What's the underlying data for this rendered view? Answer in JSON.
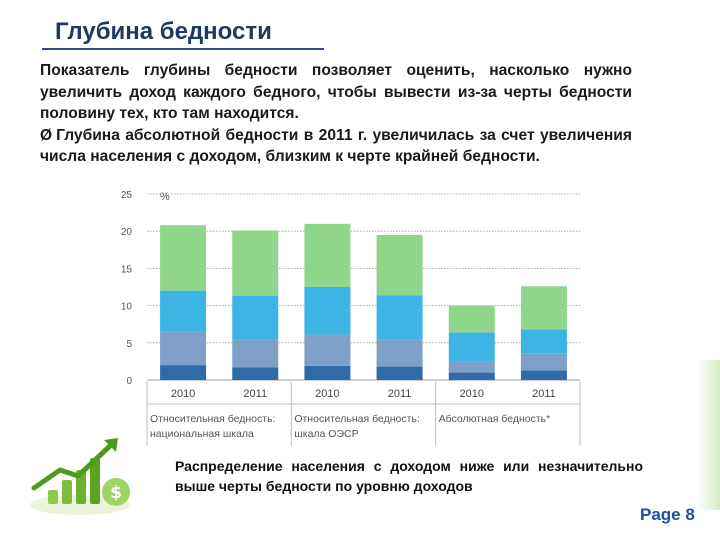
{
  "title": "Глубина бедности",
  "paragraph1": "Показатель глубины бедности позволяет оценить, насколько нужно увеличить доход каждого бедного, чтобы вывести из-за черты бедности половину тех, кто там находится.",
  "paragraph2_bullet": "Ø",
  "paragraph2": "Глубина абсолютной бедности в 2011 г. увеличилась за счет увеличения числа населения с доходом, близким к черте крайней бедности.",
  "caption": "Распределение населения с доходом ниже или незначительно выше черты бедности по уровню доходов",
  "page_label": "Page 8",
  "colors": {
    "title": "#1f3864",
    "seg1": "#2e6ba8",
    "seg2": "#7e9fc8",
    "seg3": "#3cb4e4",
    "seg4": "#8fd68a",
    "grid": "#9a9a9a",
    "page": "#1e4fa0"
  },
  "chart_data": {
    "type": "bar",
    "stacked": true,
    "ylabel": "%",
    "ylim": [
      0,
      25
    ],
    "yticks": [
      "0",
      "5",
      "10",
      "15",
      "20",
      "25"
    ],
    "grid": true,
    "categories": [
      "2010",
      "2011",
      "2010",
      "2011",
      "2010",
      "2011"
    ],
    "groups": [
      {
        "label": "Относительная бедность: национальная шкала",
        "categories": [
          0,
          1
        ]
      },
      {
        "label": "Относительная бедность: шкала ОЭСР",
        "categories": [
          2,
          3
        ]
      },
      {
        "label": "Абсолютная бедность*",
        "categories": [
          4,
          5
        ]
      }
    ],
    "series": [
      {
        "values": [
          2.0,
          1.7,
          1.9,
          1.8,
          1.0,
          1.3
        ],
        "color": "#2e6ba8"
      },
      {
        "values": [
          4.5,
          3.8,
          4.2,
          3.7,
          1.5,
          2.3
        ],
        "color": "#7e9fc8"
      },
      {
        "values": [
          5.5,
          5.8,
          6.4,
          5.9,
          3.9,
          3.2
        ],
        "color": "#3cb4e4"
      },
      {
        "values": [
          8.8,
          8.8,
          8.5,
          8.1,
          3.6,
          5.8
        ],
        "color": "#8fd68a"
      }
    ]
  }
}
